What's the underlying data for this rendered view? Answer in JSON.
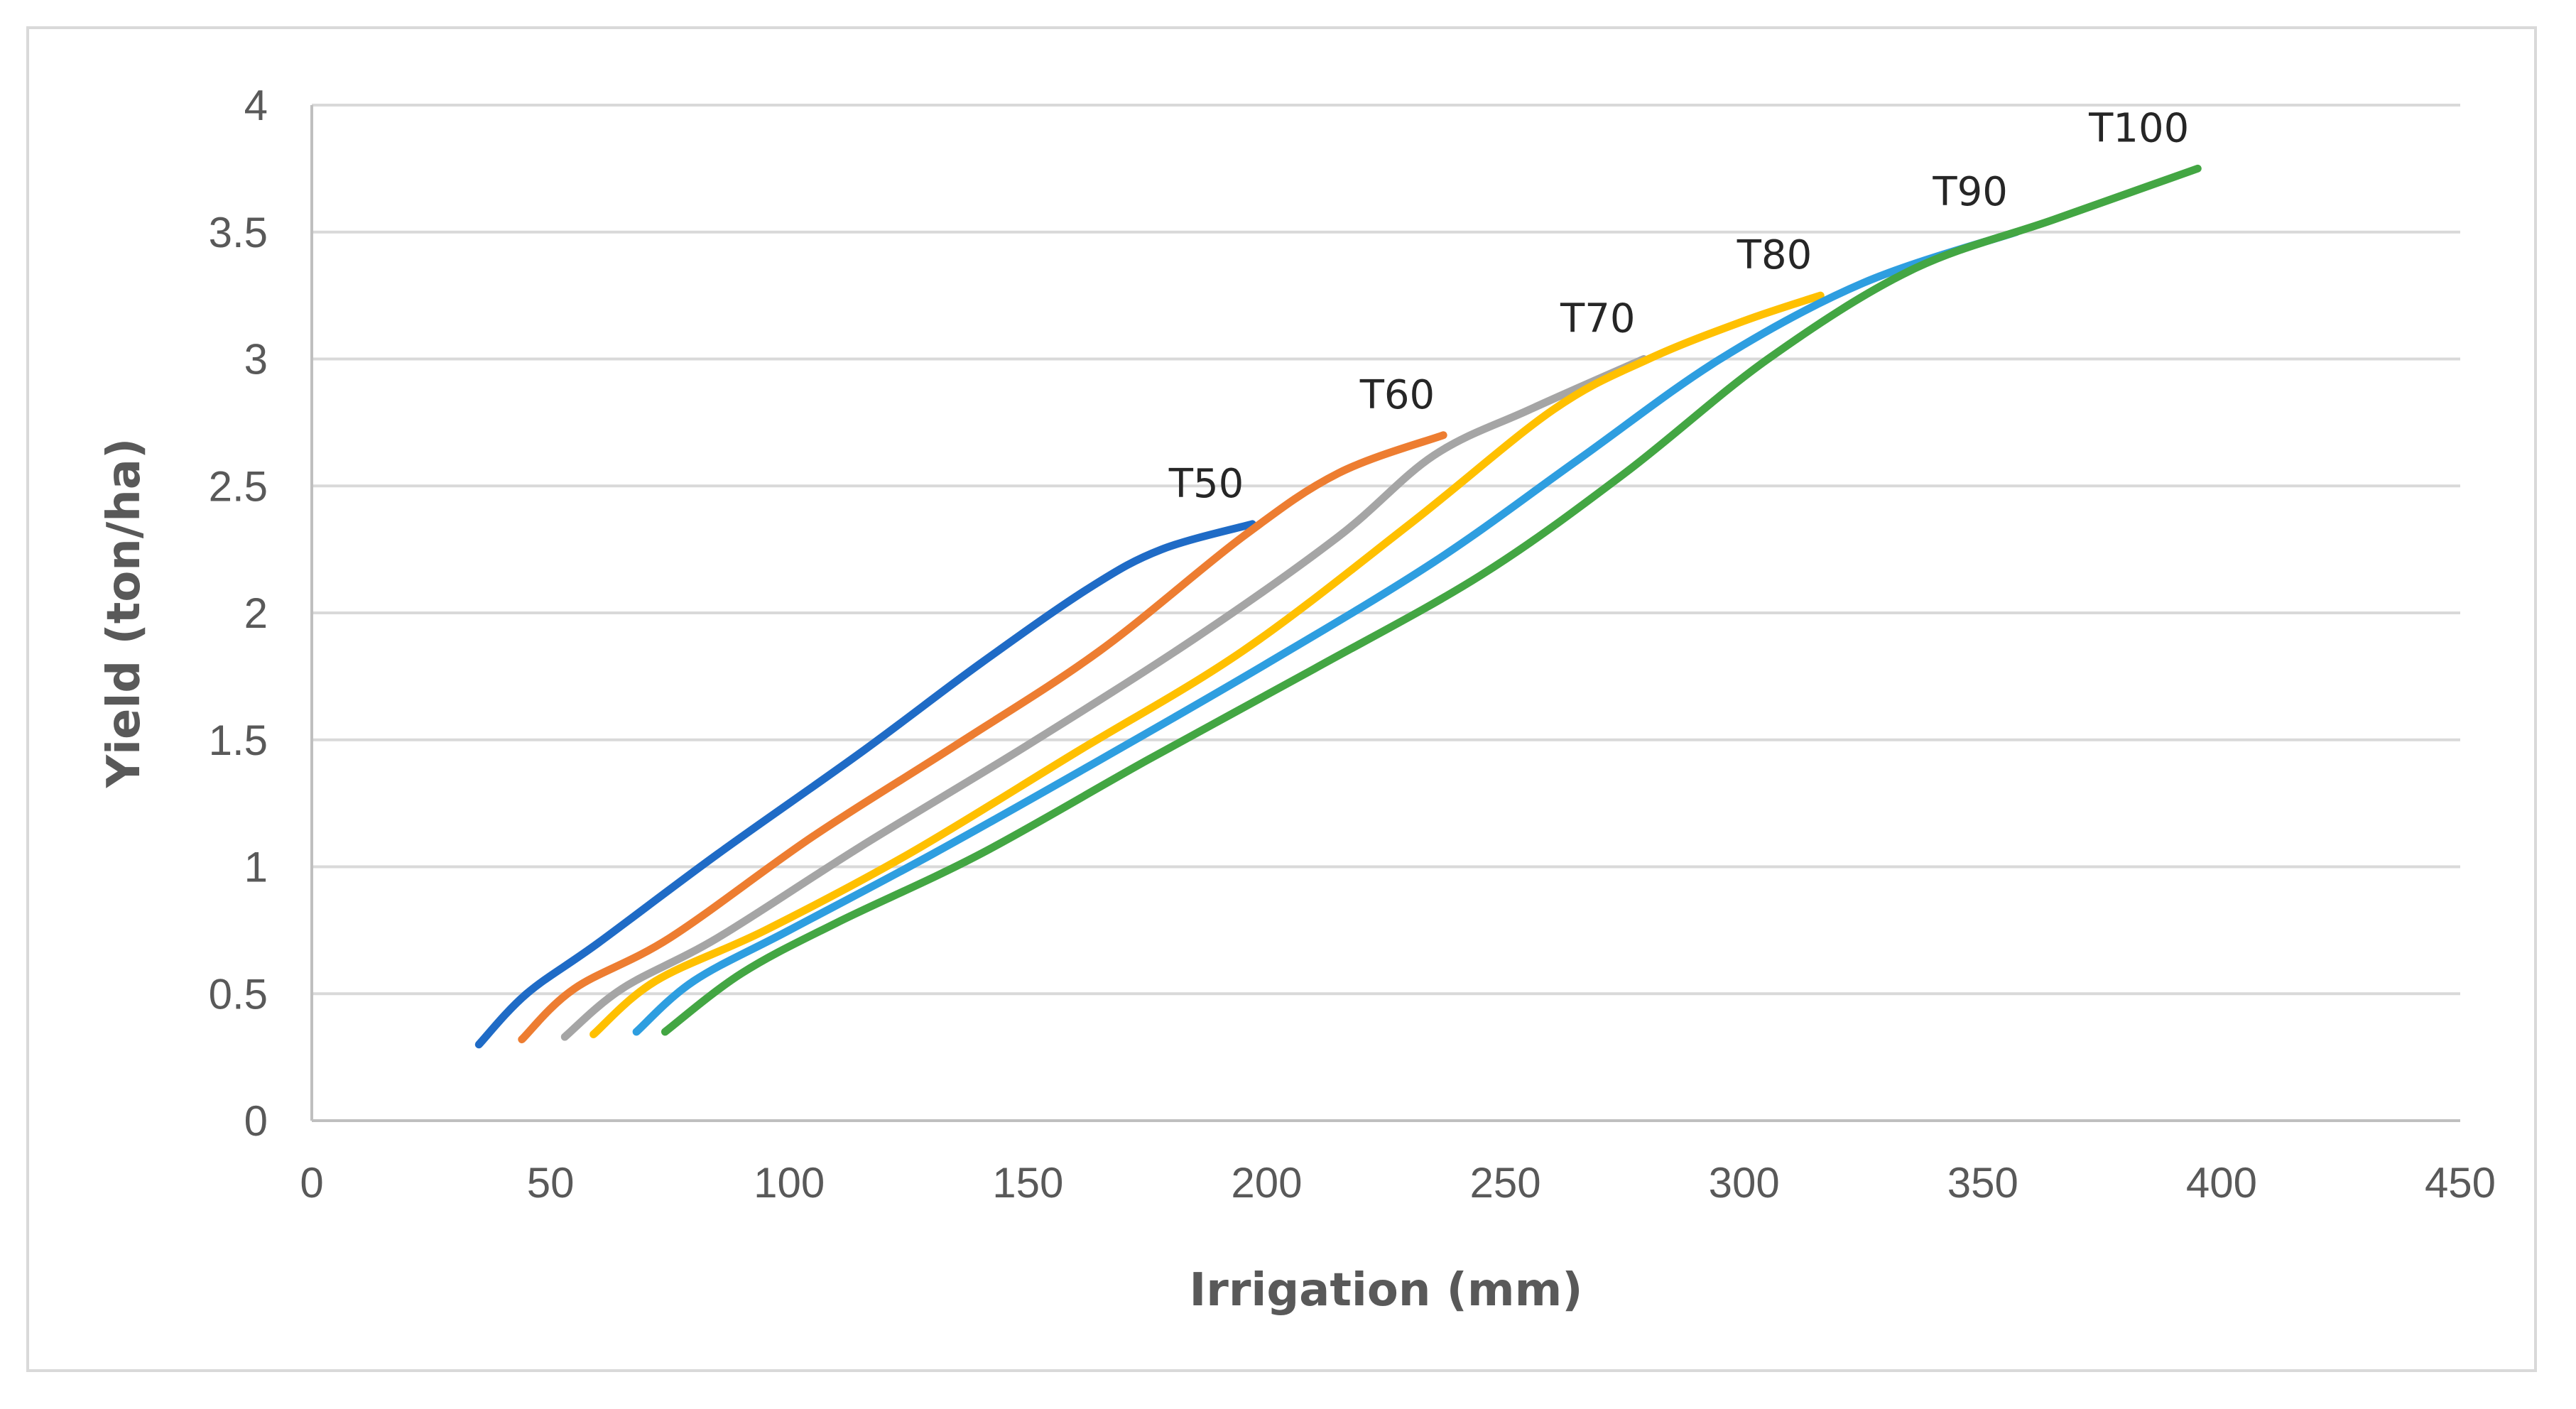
{
  "chart_data": {
    "type": "line",
    "title": "",
    "xlabel": "Irrigation (mm)",
    "ylabel": "Yield (ton/ha)",
    "xlim": [
      0,
      450
    ],
    "ylim": [
      0,
      4
    ],
    "xticks": [
      0,
      50,
      100,
      150,
      200,
      250,
      300,
      350,
      400,
      450
    ],
    "yticks": [
      0,
      0.5,
      1,
      1.5,
      2,
      2.5,
      3,
      3.5,
      4
    ],
    "grid": "horizontal",
    "legend": "none (series labeled at line ends)",
    "series": [
      {
        "name": "T50",
        "color": "#1f6bc6",
        "x": [
          35,
          45,
          60,
          85,
          115,
          140,
          163,
          178,
          197
        ],
        "y": [
          0.3,
          0.5,
          0.7,
          1.05,
          1.45,
          1.8,
          2.1,
          2.25,
          2.35
        ]
      },
      {
        "name": "T60",
        "color": "#ed7d31",
        "x": [
          44,
          55,
          75,
          105,
          135,
          165,
          195,
          215,
          237
        ],
        "y": [
          0.32,
          0.52,
          0.72,
          1.12,
          1.48,
          1.85,
          2.3,
          2.55,
          2.7
        ]
      },
      {
        "name": "T70",
        "color": "#a5a5a5",
        "x": [
          53,
          65,
          85,
          115,
          150,
          185,
          215,
          235,
          255,
          279
        ],
        "y": [
          0.33,
          0.52,
          0.72,
          1.08,
          1.48,
          1.9,
          2.3,
          2.62,
          2.8,
          3.0
        ]
      },
      {
        "name": "T80",
        "color": "#ffc000",
        "x": [
          59,
          72,
          95,
          125,
          160,
          195,
          230,
          260,
          280,
          300,
          316
        ],
        "y": [
          0.34,
          0.55,
          0.75,
          1.05,
          1.45,
          1.85,
          2.35,
          2.8,
          3.0,
          3.15,
          3.25
        ]
      },
      {
        "name": "T90",
        "color": "#2e9ee0",
        "x": [
          68,
          80,
          100,
          130,
          165,
          200,
          235,
          265,
          295,
          325,
          357
        ],
        "y": [
          0.35,
          0.55,
          0.75,
          1.05,
          1.42,
          1.8,
          2.2,
          2.6,
          3.0,
          3.3,
          3.5
        ]
      },
      {
        "name": "T100",
        "color": "#43a643",
        "x": [
          74,
          90,
          110,
          140,
          175,
          210,
          245,
          275,
          305,
          335,
          365,
          395
        ],
        "y": [
          0.35,
          0.58,
          0.78,
          1.05,
          1.42,
          1.78,
          2.15,
          2.55,
          3.0,
          3.35,
          3.55,
          3.75
        ]
      }
    ]
  }
}
